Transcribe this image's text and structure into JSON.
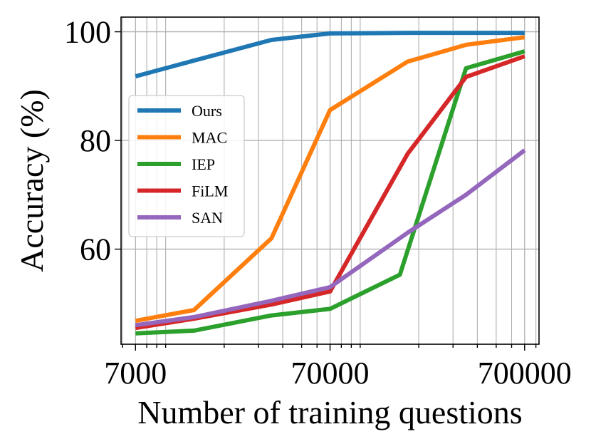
{
  "chart_data": {
    "type": "line",
    "title": "",
    "xlabel": "Number of training questions",
    "ylabel": "Accuracy (%)",
    "xscale": "log",
    "xlim": [
      5900,
      830000
    ],
    "ylim": [
      42.5,
      102.7
    ],
    "xticks": [
      7000,
      70000,
      700000
    ],
    "xtick_labels": [
      "7000",
      "70000",
      "700000"
    ],
    "yticks": [
      60,
      80,
      100
    ],
    "ytick_labels": [
      "60",
      "80",
      "100"
    ],
    "grid": true,
    "legend_position": "center-left",
    "series": [
      {
        "name": "Ours",
        "color": "#1f77b4",
        "x": [
          7000,
          14000,
          35000,
          70000,
          175000,
          350000,
          700000
        ],
        "y": [
          91.8,
          94.7,
          98.5,
          99.7,
          99.8,
          99.8,
          99.8
        ]
      },
      {
        "name": "MAC",
        "color": "#ff7f0e",
        "x": [
          7000,
          14000,
          35000,
          70000,
          175000,
          350000,
          700000
        ],
        "y": [
          46.8,
          48.8,
          62.0,
          85.6,
          94.5,
          97.6,
          99.0
        ]
      },
      {
        "name": "IEP",
        "color": "#2ca02c",
        "x": [
          7000,
          14000,
          35000,
          70000,
          160000,
          350000,
          700000
        ],
        "y": [
          44.5,
          45.0,
          47.8,
          49.0,
          55.3,
          93.3,
          96.4
        ]
      },
      {
        "name": "FiLM",
        "color": "#d62728",
        "x": [
          7000,
          14000,
          35000,
          70000,
          175000,
          350000,
          700000
        ],
        "y": [
          45.5,
          47.2,
          49.8,
          52.2,
          77.5,
          91.7,
          95.5
        ]
      },
      {
        "name": "SAN",
        "color": "#9467bd",
        "x": [
          7000,
          14000,
          35000,
          70000,
          175000,
          350000,
          700000
        ],
        "y": [
          46.0,
          47.5,
          50.5,
          53.0,
          63.0,
          70.0,
          78.2
        ]
      }
    ]
  }
}
